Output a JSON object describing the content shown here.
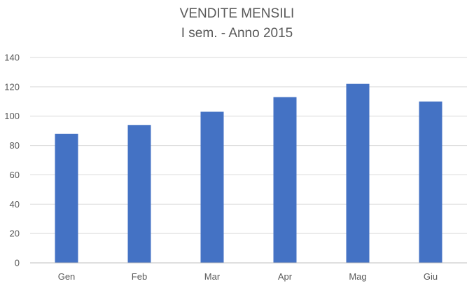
{
  "chart_data": {
    "type": "bar",
    "title": "VENDITE MENSILI",
    "subtitle": "I sem. - Anno 2015",
    "categories": [
      "Gen",
      "Feb",
      "Mar",
      "Apr",
      "Mag",
      "Giu"
    ],
    "series": [
      {
        "values": [
          88,
          94,
          103,
          113,
          122,
          110
        ]
      }
    ],
    "ylim": [
      0,
      140
    ],
    "yticks": [
      0,
      20,
      40,
      60,
      80,
      100,
      120,
      140
    ],
    "grid": true,
    "legend": "none",
    "colors": {
      "bar": "#4472c4",
      "grid": "#d9d9d9",
      "axis": "#bfbfbf",
      "tick_text": "#595959",
      "title_text": "#595959"
    }
  }
}
